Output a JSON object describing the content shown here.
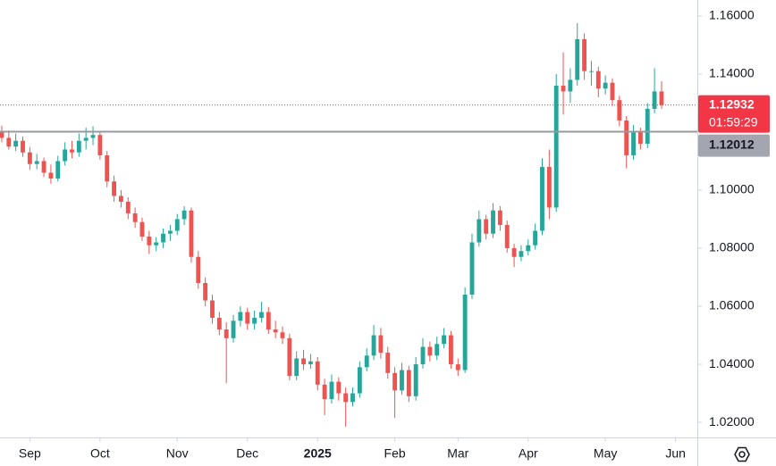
{
  "chart_data": {
    "type": "candlestick",
    "up_color": "#26a69a",
    "down_color": "#ef5350",
    "ylim": [
      1.0148,
      1.1655
    ],
    "yticks": [
      {
        "value": 1.16,
        "label": "1.16000"
      },
      {
        "value": 1.14,
        "label": "1.14000"
      },
      {
        "value": 1.1,
        "label": "1.10000"
      },
      {
        "value": 1.08,
        "label": "1.08000"
      },
      {
        "value": 1.06,
        "label": "1.06000"
      },
      {
        "value": 1.04,
        "label": "1.04000"
      },
      {
        "value": 1.02,
        "label": "1.02000"
      }
    ],
    "xlim": [
      -0.25,
      99.1
    ],
    "xticks": [
      {
        "value": 4,
        "label": "Sep"
      },
      {
        "value": 14,
        "label": "Oct"
      },
      {
        "value": 25,
        "label": "Nov"
      },
      {
        "value": 35,
        "label": "Dec"
      },
      {
        "value": 45,
        "label": "2025"
      },
      {
        "value": 56,
        "label": "Feb"
      },
      {
        "value": 65,
        "label": "Mar"
      },
      {
        "value": 75,
        "label": "Apr"
      },
      {
        "value": 86,
        "label": "May"
      },
      {
        "value": 96,
        "label": "Jun"
      }
    ],
    "price_line": {
      "value": 1.12932,
      "label": "1.12932",
      "countdown": "01:59:29",
      "color": "#f23645"
    },
    "hline": {
      "value": 1.12012,
      "label": "1.12012",
      "color": "#9598a1"
    },
    "ohlc": [
      [
        1.12,
        1.1222,
        1.1165,
        1.118
      ],
      [
        1.118,
        1.1205,
        1.114,
        1.115
      ],
      [
        1.115,
        1.1195,
        1.1135,
        1.117
      ],
      [
        1.117,
        1.1185,
        1.1115,
        1.113
      ],
      [
        1.113,
        1.1148,
        1.107,
        1.109
      ],
      [
        1.109,
        1.1125,
        1.1072,
        1.11
      ],
      [
        1.11,
        1.1112,
        1.1045,
        1.106
      ],
      [
        1.106,
        1.1088,
        1.1022,
        1.104
      ],
      [
        1.104,
        1.1118,
        1.103,
        1.11
      ],
      [
        1.11,
        1.1165,
        1.1085,
        1.114
      ],
      [
        1.114,
        1.117,
        1.111,
        1.113
      ],
      [
        1.113,
        1.1195,
        1.1115,
        1.117
      ],
      [
        1.117,
        1.1215,
        1.114,
        1.118
      ],
      [
        1.118,
        1.122,
        1.1155,
        1.119
      ],
      [
        1.119,
        1.12,
        1.1105,
        1.112
      ],
      [
        1.112,
        1.1135,
        1.101,
        1.103
      ],
      [
        1.103,
        1.105,
        1.096,
        1.098
      ],
      [
        1.098,
        1.1,
        1.094,
        1.096
      ],
      [
        1.096,
        1.0975,
        1.09,
        1.092
      ],
      [
        1.092,
        1.094,
        1.087,
        1.089
      ],
      [
        1.089,
        1.0905,
        1.0825,
        1.084
      ],
      [
        1.084,
        1.086,
        1.078,
        1.081
      ],
      [
        1.081,
        1.0838,
        1.079,
        1.082
      ],
      [
        1.082,
        1.0868,
        1.08,
        1.085
      ],
      [
        1.085,
        1.088,
        1.0825,
        1.086
      ],
      [
        1.086,
        1.0918,
        1.0845,
        1.09
      ],
      [
        1.09,
        1.0945,
        1.088,
        1.093
      ],
      [
        1.093,
        1.094,
        1.075,
        1.077
      ],
      [
        1.077,
        1.079,
        1.066,
        1.068
      ],
      [
        1.068,
        1.07,
        1.06,
        1.062
      ],
      [
        1.062,
        1.064,
        1.054,
        1.056
      ],
      [
        1.056,
        1.058,
        1.05,
        1.052
      ],
      [
        1.052,
        1.0545,
        1.0335,
        1.049
      ],
      [
        1.049,
        1.057,
        1.0475,
        1.055
      ],
      [
        1.055,
        1.06,
        1.053,
        1.058
      ],
      [
        1.058,
        1.0595,
        1.052,
        1.054
      ],
      [
        1.054,
        1.0585,
        1.052,
        1.056
      ],
      [
        1.056,
        1.0615,
        1.0545,
        1.058
      ],
      [
        1.058,
        1.0598,
        1.0505,
        1.052
      ],
      [
        1.052,
        1.055,
        1.049,
        1.051
      ],
      [
        1.051,
        1.053,
        1.047,
        1.049
      ],
      [
        1.049,
        1.0505,
        1.0345,
        1.036
      ],
      [
        1.036,
        1.0445,
        1.0345,
        1.042
      ],
      [
        1.042,
        1.045,
        1.038,
        1.04
      ],
      [
        1.04,
        1.0435,
        1.0385,
        1.041
      ],
      [
        1.041,
        1.0425,
        1.031,
        1.033
      ],
      [
        1.033,
        1.035,
        1.0225,
        1.028
      ],
      [
        1.028,
        1.0365,
        1.0265,
        1.034
      ],
      [
        1.034,
        1.0355,
        1.0275,
        1.03
      ],
      [
        1.03,
        1.032,
        1.0185,
        1.027
      ],
      [
        1.027,
        1.032,
        1.0255,
        1.03
      ],
      [
        1.03,
        1.041,
        1.0285,
        1.039
      ],
      [
        1.039,
        1.0455,
        1.0375,
        1.043
      ],
      [
        1.043,
        1.0535,
        1.0415,
        1.05
      ],
      [
        1.05,
        1.0525,
        1.042,
        1.044
      ],
      [
        1.044,
        1.046,
        1.035,
        1.037
      ],
      [
        1.037,
        1.039,
        1.0215,
        1.031
      ],
      [
        1.031,
        1.0405,
        1.0295,
        1.038
      ],
      [
        1.038,
        1.0395,
        1.027,
        1.029
      ],
      [
        1.029,
        1.0425,
        1.0275,
        1.04
      ],
      [
        1.04,
        1.049,
        1.0385,
        1.046
      ],
      [
        1.046,
        1.0478,
        1.041,
        1.043
      ],
      [
        1.043,
        1.0495,
        1.0415,
        1.047
      ],
      [
        1.047,
        1.0525,
        1.0455,
        1.05
      ],
      [
        1.05,
        1.0515,
        1.0385,
        1.04
      ],
      [
        1.04,
        1.042,
        1.036,
        1.038
      ],
      [
        1.038,
        1.0665,
        1.037,
        1.064
      ],
      [
        1.064,
        1.085,
        1.0625,
        1.082
      ],
      [
        1.082,
        1.093,
        1.0805,
        1.09
      ],
      [
        1.09,
        1.0915,
        1.083,
        1.085
      ],
      [
        1.085,
        1.0955,
        1.0835,
        1.093
      ],
      [
        1.093,
        1.0945,
        1.086,
        1.088
      ],
      [
        1.088,
        1.0895,
        1.0785,
        1.08
      ],
      [
        1.08,
        1.0815,
        1.0735,
        1.077
      ],
      [
        1.077,
        1.081,
        1.0755,
        1.079
      ],
      [
        1.079,
        1.083,
        1.0775,
        1.081
      ],
      [
        1.081,
        1.0885,
        1.0795,
        1.086
      ],
      [
        1.086,
        1.111,
        1.0845,
        1.108
      ],
      [
        1.108,
        1.114,
        1.09,
        1.094
      ],
      [
        1.094,
        1.14,
        1.0925,
        1.136
      ],
      [
        1.136,
        1.1475,
        1.126,
        1.134
      ],
      [
        1.134,
        1.142,
        1.13,
        1.138
      ],
      [
        1.138,
        1.1575,
        1.136,
        1.152
      ],
      [
        1.152,
        1.154,
        1.138,
        1.141
      ],
      [
        1.141,
        1.1445,
        1.136,
        1.141
      ],
      [
        1.141,
        1.1425,
        1.132,
        1.135
      ],
      [
        1.135,
        1.1395,
        1.133,
        1.137
      ],
      [
        1.137,
        1.1385,
        1.129,
        1.131
      ],
      [
        1.131,
        1.1325,
        1.122,
        1.124
      ],
      [
        1.124,
        1.1255,
        1.1075,
        1.112
      ],
      [
        1.112,
        1.1225,
        1.1105,
        1.12
      ],
      [
        1.12,
        1.1215,
        1.114,
        1.116
      ],
      [
        1.116,
        1.13,
        1.1145,
        1.128
      ],
      [
        1.128,
        1.142,
        1.1265,
        1.134
      ],
      [
        1.134,
        1.1375,
        1.128,
        1.12932
      ]
    ]
  }
}
